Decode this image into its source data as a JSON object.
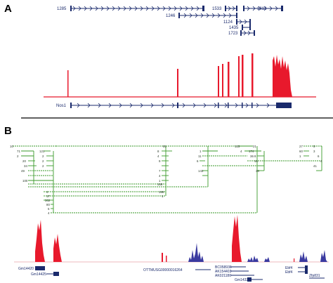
{
  "panel_a": {
    "label": "A",
    "transcripts": [
      "1285",
      "1246",
      "1533",
      "1613",
      "1124",
      "1435",
      "1723"
    ],
    "gene": "Nos1"
  },
  "panel_b": {
    "label": "B",
    "row_numbers": [
      "10",
      "81",
      "123",
      "21",
      "27",
      "5",
      "71",
      "121",
      "8",
      "1",
      "4",
      "174",
      "60",
      "3",
      "2",
      "2",
      "4",
      "11",
      "8",
      "36",
      "1",
      "6",
      "20",
      "2",
      "9",
      "6",
      "16",
      "4",
      "34",
      "2",
      "41",
      "49",
      "7",
      "143",
      "30",
      "4",
      "100",
      "1",
      "169",
      "4",
      "159",
      "17",
      "1",
      "302",
      "80",
      "5",
      "4"
    ],
    "gene_labels": {
      "left_1": "Gm14420",
      "left_2": "Gm14425",
      "mid_1": "OTTMUSG00000016264",
      "mid_2": "BC058936",
      "mid_3": "AK154403",
      "mid_4": "AK021180",
      "mid_5": "Gm14324",
      "right_1": "Ebf4",
      "right_2": "Ebf4",
      "right_3": "Zfp831"
    }
  },
  "colors": {
    "navy": "#1a2a6c",
    "red": "#e8192c",
    "green": "#3a9a2a",
    "blue": "#3a3aa0"
  }
}
